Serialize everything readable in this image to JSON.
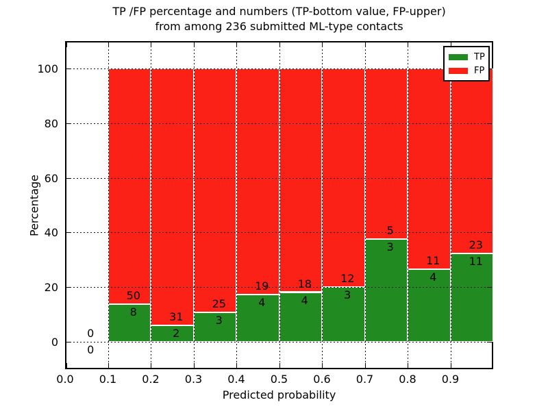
{
  "chart_data": {
    "type": "bar",
    "stacked": true,
    "title_line1": "TP /FP percentage and numbers (TP-bottom value, FP-upper)",
    "title_line2": "from among 236 submitted ML-type contacts",
    "xlabel": "Predicted probability",
    "ylabel": "Percentage",
    "total_contacts": 236,
    "xlim": [
      0.0,
      1.0
    ],
    "ylim": [
      -10,
      110
    ],
    "bar_width": 0.1,
    "grid": "dotted, drawn above bars",
    "bar_edge_color": "#ffffff",
    "xtick_labels": [
      "0.0",
      "0.1",
      "0.2",
      "0.3",
      "0.4",
      "0.5",
      "0.6",
      "0.7",
      "0.8",
      "0.9"
    ],
    "ytick_values": [
      0,
      20,
      40,
      60,
      80,
      100
    ],
    "ytick_labels": [
      "0",
      "20",
      "40",
      "60",
      "80",
      "100"
    ],
    "legend": {
      "position": "upper right",
      "items": [
        {
          "label": "TP",
          "color": "#218b21"
        },
        {
          "label": "FP",
          "color": "#fb2116"
        }
      ]
    },
    "bins": [
      {
        "range": [
          0.0,
          0.1
        ],
        "tp": 0,
        "fp": 0
      },
      {
        "range": [
          0.1,
          0.2
        ],
        "tp": 8,
        "fp": 50
      },
      {
        "range": [
          0.2,
          0.3
        ],
        "tp": 2,
        "fp": 31
      },
      {
        "range": [
          0.3,
          0.4
        ],
        "tp": 3,
        "fp": 25
      },
      {
        "range": [
          0.4,
          0.5
        ],
        "tp": 4,
        "fp": 19
      },
      {
        "range": [
          0.5,
          0.6
        ],
        "tp": 4,
        "fp": 18
      },
      {
        "range": [
          0.6,
          0.7
        ],
        "tp": 3,
        "fp": 12
      },
      {
        "range": [
          0.7,
          0.8
        ],
        "tp": 3,
        "fp": 5
      },
      {
        "range": [
          0.8,
          0.9
        ],
        "tp": 4,
        "fp": 11
      },
      {
        "range": [
          0.9,
          1.0
        ],
        "tp": 11,
        "fp": 23
      }
    ]
  }
}
